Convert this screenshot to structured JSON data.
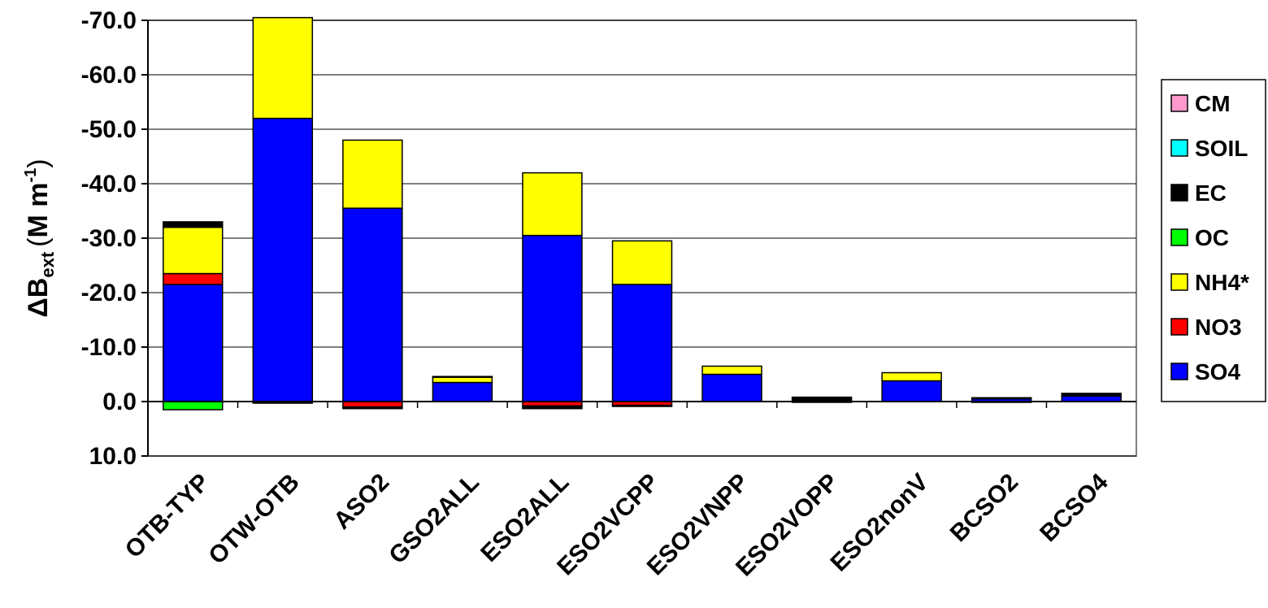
{
  "chart_data": {
    "type": "bar",
    "stacked": true,
    "y_axis_inverted": true,
    "categories": [
      "OTB-TYP",
      "OTW-OTB",
      "ASO2",
      "GSO2ALL",
      "ESO2ALL",
      "ESO2VCPP",
      "ESO2VNPP",
      "ESO2VOPP",
      "ESO2nonV",
      "BCSO2",
      "BCSO4"
    ],
    "ylabel": "ΔBext (Mm-1)",
    "ylabel_parts": {
      "delta": "Δ",
      "b": "B",
      "sub": "ext",
      "unit_open": "(",
      "unit": "M m",
      "sup": "-1",
      "unit_close": ")"
    },
    "ylim": [
      10,
      -70
    ],
    "yticks": [
      -70,
      -60,
      -50,
      -40,
      -30,
      -20,
      -10,
      0,
      10
    ],
    "ytick_labels": [
      "-70.0",
      "-60.0",
      "-50.0",
      "-40.0",
      "-30.0",
      "-20.0",
      "-10.0",
      "0.0",
      "10.0"
    ],
    "grid": true,
    "legend": "right",
    "series": [
      {
        "name": "SO4",
        "color": "#0000FF",
        "values": [
          -21.5,
          -52.0,
          -35.5,
          -3.5,
          -30.5,
          -21.5,
          -5.0,
          -0.2,
          -3.8,
          -0.5,
          -1.0
        ]
      },
      {
        "name": "NO3",
        "color": "#FF0000",
        "values": [
          -2.0,
          0.0,
          1.0,
          0.0,
          0.8,
          0.7,
          0.0,
          0.1,
          0.0,
          0.1,
          0.0
        ]
      },
      {
        "name": "NH4*",
        "color": "#FFFF00",
        "values": [
          -8.5,
          -18.5,
          -12.5,
          -1.0,
          -11.5,
          -8.0,
          -1.5,
          0.0,
          -1.5,
          0.0,
          0.0
        ]
      },
      {
        "name": "OC",
        "color": "#00FF00",
        "values": [
          1.5,
          0.0,
          0.0,
          0.0,
          0.0,
          0.0,
          0.0,
          0.0,
          0.0,
          0.0,
          0.0
        ]
      },
      {
        "name": "EC",
        "color": "#000000",
        "values": [
          -1.0,
          0.3,
          0.3,
          -0.1,
          0.5,
          0.2,
          0.0,
          -0.6,
          0.0,
          -0.2,
          -0.5
        ]
      },
      {
        "name": "SOIL",
        "color": "#00FFFF",
        "values": [
          0,
          0,
          0,
          0,
          0,
          0,
          0,
          0,
          0,
          0,
          0
        ]
      },
      {
        "name": "CM",
        "color": "#FF99CC",
        "values": [
          0,
          0,
          0,
          0,
          0,
          0,
          0,
          0,
          0,
          0,
          0
        ]
      }
    ]
  }
}
